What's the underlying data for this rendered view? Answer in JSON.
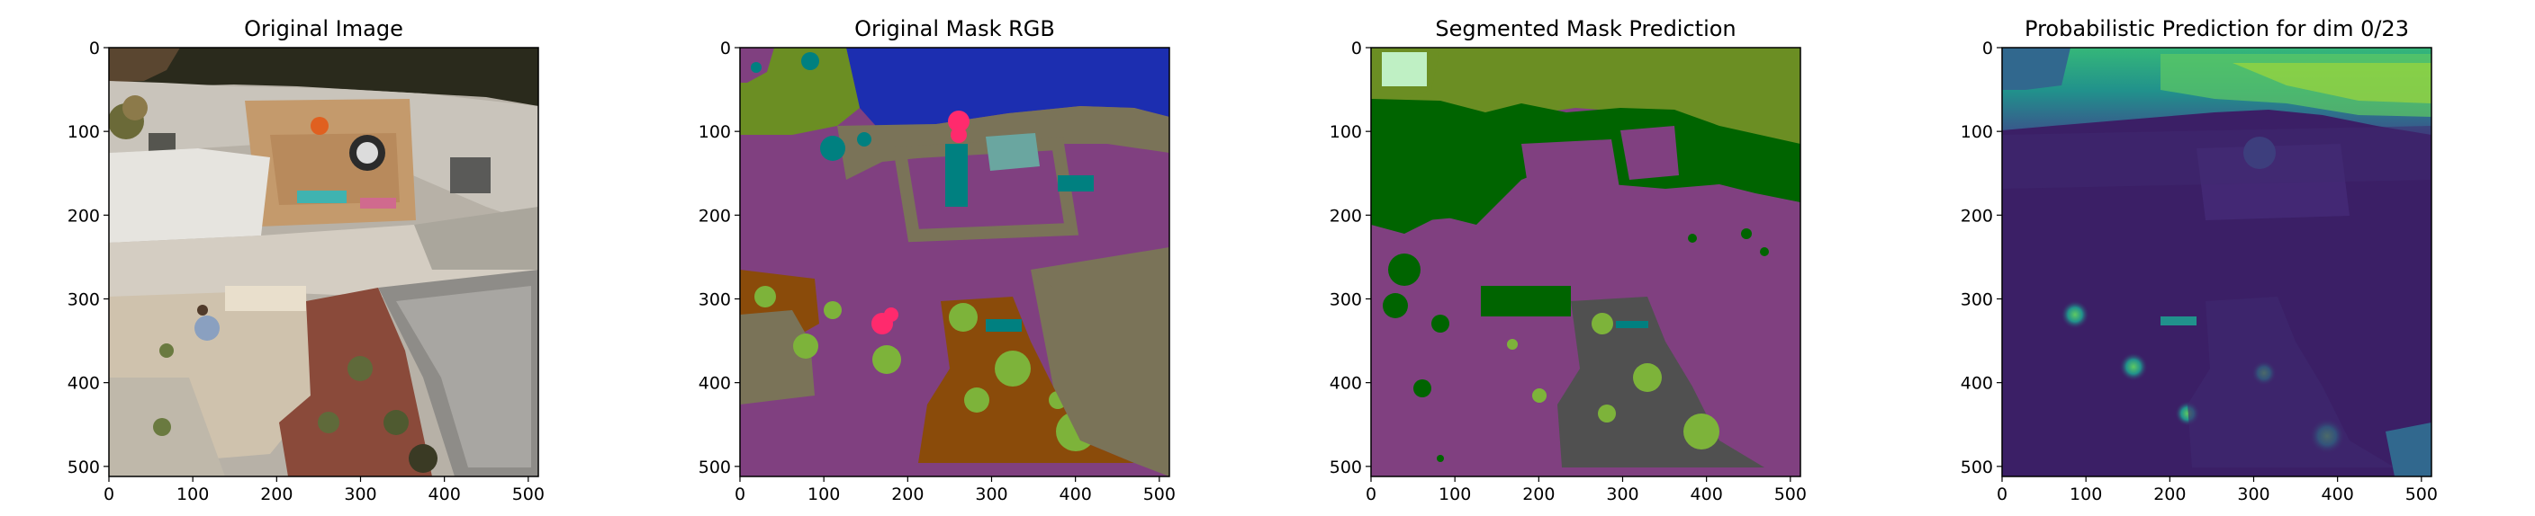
{
  "chart_data": [
    {
      "type": "image",
      "title": "Original Image",
      "xticks": [
        0,
        100,
        200,
        300,
        400,
        500
      ],
      "yticks": [
        0,
        100,
        200,
        300,
        400,
        500
      ],
      "xlim": [
        0,
        512
      ],
      "ylim": [
        512,
        0
      ]
    },
    {
      "type": "image",
      "title": "Original Mask RGB",
      "xticks": [
        0,
        100,
        200,
        300,
        400,
        500
      ],
      "yticks": [
        0,
        100,
        200,
        300,
        400,
        500
      ],
      "xlim": [
        0,
        512
      ],
      "ylim": [
        512,
        0
      ]
    },
    {
      "type": "image",
      "title": "Segmented Mask Prediction",
      "xticks": [
        0,
        100,
        200,
        300,
        400,
        500
      ],
      "yticks": [
        0,
        100,
        200,
        300,
        400,
        500
      ],
      "xlim": [
        0,
        512
      ],
      "ylim": [
        512,
        0
      ]
    },
    {
      "type": "heatmap",
      "title": "Probabilistic Prediction for dim 0/23",
      "xticks": [
        0,
        100,
        200,
        300,
        400,
        500
      ],
      "yticks": [
        0,
        100,
        200,
        300,
        400,
        500
      ],
      "xlim": [
        0,
        512
      ],
      "ylim": [
        512,
        0
      ],
      "colormap": "viridis"
    }
  ],
  "colors": {
    "mask_purple": "#804080",
    "mask_blue": "#1c2eb0",
    "mask_olive": "#6b8e23",
    "mask_teal": "#008080",
    "mask_grey": "#7a7358",
    "mask_brown": "#8a4b0a",
    "mask_green_light": "#7db33a",
    "mask_pink": "#ff2a6d",
    "pred_green": "#006400",
    "pred_grey": "#505050",
    "viridis_dark": "#440154",
    "viridis_mid": "#31688e",
    "viridis_teal": "#21918c",
    "viridis_yellow": "#fde725"
  }
}
